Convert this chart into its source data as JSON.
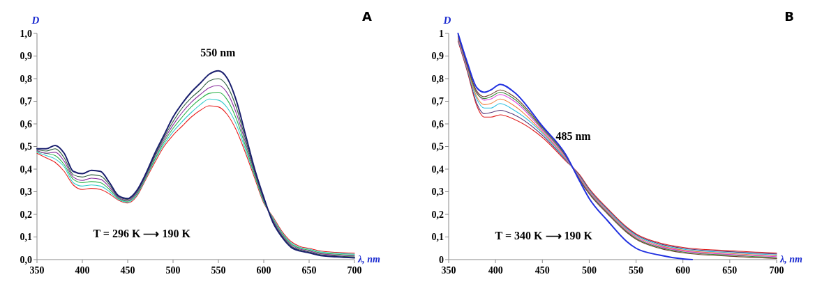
{
  "chart_data": [
    {
      "type": "line",
      "title": "A",
      "xlabel": "λ, nm",
      "ylabel": "D",
      "xlim": [
        350,
        700
      ],
      "ylim": [
        0,
        1
      ],
      "xticks": [
        350,
        400,
        450,
        500,
        550,
        600,
        650,
        700
      ],
      "yticks": [
        {
          "value": 0,
          "label": "0,0"
        },
        {
          "value": 0.1,
          "label": "0,1"
        },
        {
          "value": 0.2,
          "label": "0,2"
        },
        {
          "value": 0.3,
          "label": "0,3"
        },
        {
          "value": 0.4,
          "label": "0,4"
        },
        {
          "value": 0.5,
          "label": "0,5"
        },
        {
          "value": 0.6,
          "label": "0,6"
        },
        {
          "value": 0.7,
          "label": "0,7"
        },
        {
          "value": 0.8,
          "label": "0,8"
        },
        {
          "value": 0.9,
          "label": "0,9"
        },
        {
          "value": 1,
          "label": "1,0"
        }
      ],
      "x": [
        350,
        360,
        370,
        380,
        390,
        400,
        410,
        420,
        430,
        440,
        450,
        460,
        470,
        480,
        490,
        500,
        510,
        520,
        530,
        540,
        550,
        560,
        570,
        580,
        590,
        600,
        610,
        620,
        630,
        640,
        650,
        660,
        680,
        700
      ],
      "series": [
        {
          "color": "#e8201f",
          "values": [
            0.47,
            0.45,
            0.43,
            0.39,
            0.33,
            0.31,
            0.315,
            0.31,
            0.29,
            0.262,
            0.25,
            0.28,
            0.355,
            0.43,
            0.5,
            0.55,
            0.59,
            0.63,
            0.66,
            0.68,
            0.675,
            0.64,
            0.57,
            0.47,
            0.36,
            0.25,
            0.19,
            0.125,
            0.08,
            0.058,
            0.05,
            0.04,
            0.032,
            0.028
          ]
        },
        {
          "color": "#33cccc",
          "values": [
            0.474,
            0.46,
            0.445,
            0.41,
            0.34,
            0.325,
            0.33,
            0.325,
            0.3,
            0.266,
            0.254,
            0.285,
            0.36,
            0.44,
            0.51,
            0.565,
            0.61,
            0.65,
            0.685,
            0.71,
            0.705,
            0.67,
            0.595,
            0.485,
            0.37,
            0.255,
            0.185,
            0.12,
            0.075,
            0.054,
            0.046,
            0.036,
            0.028,
            0.024
          ]
        },
        {
          "color": "#2db34a",
          "values": [
            0.478,
            0.47,
            0.46,
            0.42,
            0.355,
            0.34,
            0.345,
            0.34,
            0.31,
            0.27,
            0.258,
            0.29,
            0.365,
            0.445,
            0.52,
            0.58,
            0.63,
            0.675,
            0.71,
            0.735,
            0.74,
            0.705,
            0.62,
            0.5,
            0.375,
            0.26,
            0.18,
            0.115,
            0.07,
            0.05,
            0.042,
            0.032,
            0.024,
            0.02
          ]
        },
        {
          "color": "#8b2f9e",
          "values": [
            0.482,
            0.47,
            0.475,
            0.435,
            0.365,
            0.35,
            0.36,
            0.355,
            0.32,
            0.274,
            0.262,
            0.295,
            0.37,
            0.455,
            0.53,
            0.595,
            0.65,
            0.695,
            0.73,
            0.76,
            0.77,
            0.735,
            0.645,
            0.515,
            0.385,
            0.265,
            0.175,
            0.11,
            0.065,
            0.046,
            0.038,
            0.028,
            0.02,
            0.016
          ]
        },
        {
          "color": "#2e5e3e",
          "values": [
            0.486,
            0.48,
            0.49,
            0.45,
            0.375,
            0.365,
            0.375,
            0.37,
            0.33,
            0.278,
            0.266,
            0.3,
            0.375,
            0.46,
            0.54,
            0.61,
            0.67,
            0.715,
            0.75,
            0.79,
            0.8,
            0.765,
            0.67,
            0.53,
            0.39,
            0.27,
            0.17,
            0.105,
            0.06,
            0.042,
            0.034,
            0.024,
            0.016,
            0.012
          ]
        },
        {
          "color": "#1a1f6e",
          "values": [
            0.49,
            0.49,
            0.505,
            0.47,
            0.39,
            0.38,
            0.395,
            0.39,
            0.34,
            0.282,
            0.27,
            0.305,
            0.38,
            0.47,
            0.55,
            0.63,
            0.69,
            0.74,
            0.78,
            0.82,
            0.835,
            0.8,
            0.7,
            0.55,
            0.4,
            0.275,
            0.165,
            0.1,
            0.055,
            0.038,
            0.03,
            0.02,
            0.012,
            0.008
          ]
        }
      ],
      "annotations": [
        "550 nm",
        "T = 296 K ⟶ 190 K"
      ]
    },
    {
      "type": "line",
      "title": "B",
      "xlabel": "λ, nm",
      "ylabel": "D",
      "xlim": [
        350,
        700
      ],
      "ylim": [
        0,
        1
      ],
      "xticks": [
        350,
        400,
        450,
        500,
        550,
        600,
        650,
        700
      ],
      "yticks": [
        0,
        {
          "value": 0.1,
          "label": "0,1"
        },
        {
          "value": 0.2,
          "label": "0,2"
        },
        {
          "value": 0.3,
          "label": "0,3"
        },
        {
          "value": 0.4,
          "label": "0,4"
        },
        {
          "value": 0.5,
          "label": "0,5"
        },
        {
          "value": 0.6,
          "label": "0,6"
        },
        {
          "value": 0.7,
          "label": "0,7"
        },
        {
          "value": 0.8,
          "label": "0,8"
        },
        {
          "value": 0.9,
          "label": "0,9"
        },
        1
      ],
      "x": [
        360,
        370,
        380,
        388,
        395,
        405,
        420,
        450,
        475,
        490,
        500,
        520,
        540,
        550,
        575,
        600,
        650,
        700
      ],
      "series": [
        {
          "color": "#e02020",
          "values": [
            0.965,
            0.83,
            0.68,
            0.63,
            0.63,
            0.64,
            0.62,
            0.54,
            0.436,
            0.374,
            0.314,
            0.224,
            0.144,
            0.114,
            0.074,
            0.054,
            0.039,
            0.029
          ]
        },
        {
          "color": "#5a3a7a",
          "values": [
            0.97,
            0.835,
            0.69,
            0.645,
            0.65,
            0.66,
            0.64,
            0.55,
            0.44,
            0.37,
            0.31,
            0.22,
            0.14,
            0.11,
            0.07,
            0.05,
            0.035,
            0.025
          ]
        },
        {
          "color": "#30c0e0",
          "values": [
            0.975,
            0.84,
            0.71,
            0.67,
            0.67,
            0.69,
            0.66,
            0.56,
            0.444,
            0.366,
            0.306,
            0.216,
            0.136,
            0.106,
            0.066,
            0.046,
            0.031,
            0.021
          ]
        },
        {
          "color": "#f08040",
          "values": [
            0.98,
            0.845,
            0.72,
            0.685,
            0.69,
            0.71,
            0.68,
            0.565,
            0.448,
            0.362,
            0.302,
            0.212,
            0.132,
            0.102,
            0.062,
            0.042,
            0.027,
            0.017
          ]
        },
        {
          "color": "#e040e0",
          "values": [
            0.985,
            0.85,
            0.74,
            0.705,
            0.71,
            0.73,
            0.7,
            0.572,
            0.452,
            0.358,
            0.298,
            0.208,
            0.128,
            0.098,
            0.058,
            0.038,
            0.023,
            0.013
          ]
        },
        {
          "color": "#3a8a3a",
          "values": [
            0.99,
            0.855,
            0.735,
            0.712,
            0.72,
            0.74,
            0.71,
            0.578,
            0.456,
            0.354,
            0.294,
            0.204,
            0.124,
            0.094,
            0.054,
            0.034,
            0.019,
            0.009
          ]
        },
        {
          "color": "#6a3a2a",
          "values": [
            0.995,
            0.86,
            0.745,
            0.72,
            0.73,
            0.75,
            0.72,
            0.584,
            0.46,
            0.35,
            0.29,
            0.2,
            0.12,
            0.09,
            0.05,
            0.03,
            0.015,
            0.005
          ]
        },
        {
          "color": "#2030e0",
          "x": [
            360,
            370,
            380,
            388,
            395,
            405,
            420,
            450,
            475,
            490,
            500,
            520,
            540,
            550,
            575,
            600,
            610
          ],
          "values": [
            1,
            0.87,
            0.76,
            0.74,
            0.75,
            0.775,
            0.74,
            0.59,
            0.464,
            0.345,
            0.27,
            0.17,
            0.08,
            0.05,
            0.02,
            0.003,
            0
          ]
        }
      ],
      "annotations": [
        "485 nm",
        "T = 340 K ⟶ 190 K"
      ]
    }
  ]
}
